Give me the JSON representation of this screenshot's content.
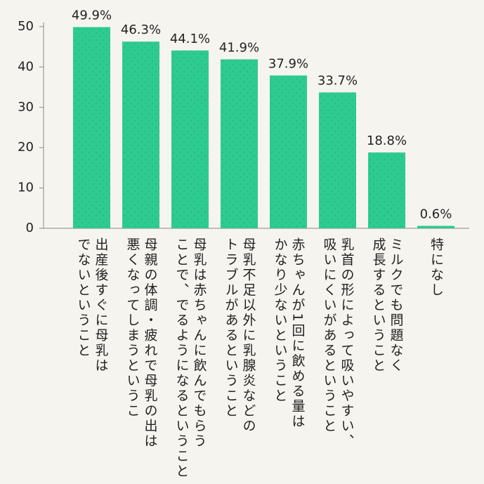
{
  "chart_data": {
    "type": "bar",
    "categories": [
      "出産後すぐに母乳は\nでないということ",
      "母親の体調・疲れで母乳の出は\n悪くなってしまうというこ",
      "母乳は赤ちゃんに飲んでもらう\nことで、でるようになるということ",
      "母乳不足以外に乳腺炎などの\nトラブルがあるということ",
      "赤ちゃんが1回に飲める量は\nかなり少ないということ",
      "乳首の形によって吸いやすい、\n吸いにくいがあるということ",
      "ミルクでも問題なく\n成長するということ",
      "特になし"
    ],
    "values": [
      49.9,
      46.3,
      44.1,
      41.9,
      37.9,
      33.7,
      18.8,
      0.6
    ],
    "value_labels": [
      "49.9%",
      "46.3%",
      "44.1%",
      "41.9%",
      "37.9%",
      "33.7%",
      "18.8%",
      "0.6%"
    ],
    "color": "#2ecb90",
    "ylim": [
      0,
      50
    ],
    "yticks": [
      0,
      10,
      20,
      30,
      40,
      50
    ]
  }
}
